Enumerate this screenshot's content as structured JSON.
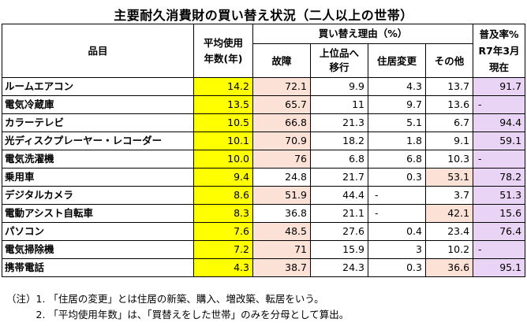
{
  "title": "主要耐久消費財の買い替え状況（二人以上の世帯）",
  "headers": {
    "item": "品目",
    "avg_years_line1": "平均使用",
    "avg_years_line2": "年数(年)",
    "reasons_group": "買い替え理由（%）",
    "reason_failure": "故障",
    "reason_upgrade_line1": "上位品へ",
    "reason_upgrade_line2": "移行",
    "reason_move": "住居変更",
    "reason_other": "その他",
    "spread_line1": "普及率%",
    "spread_line2": "R7年3月",
    "spread_line3": "現在"
  },
  "rows": [
    {
      "name": "ルームエアコン",
      "years": "14.2",
      "failure": "72.1",
      "upgrade": "9.9",
      "move": "4.3",
      "other": "13.7",
      "spread": "91.7"
    },
    {
      "name": "電気冷蔵庫",
      "years": "13.5",
      "failure": "65.7",
      "upgrade": "11",
      "move": "9.7",
      "other": "13.6",
      "spread": "-"
    },
    {
      "name": "カラーテレビ",
      "years": "10.5",
      "failure": "66.8",
      "upgrade": "21.3",
      "move": "5.1",
      "other": "6.7",
      "spread": "94.4"
    },
    {
      "name": "光ディスクプレーヤー・レコーダー",
      "years": "10.1",
      "failure": "70.9",
      "upgrade": "18.2",
      "move": "1.8",
      "other": "9.1",
      "spread": "59.1"
    },
    {
      "name": "電気洗濯機",
      "years": "10.0",
      "failure": "76",
      "upgrade": "6.8",
      "move": "6.8",
      "other": "10.3",
      "spread": "-"
    },
    {
      "name": "乗用車",
      "years": "9.4",
      "failure": "24.8",
      "upgrade": "21.7",
      "move": "0.3",
      "other": "53.1",
      "spread": "78.2"
    },
    {
      "name": "デジタルカメラ",
      "years": "8.6",
      "failure": "51.9",
      "upgrade": "44.4",
      "move": "-",
      "other": "3.7",
      "spread": "51.3"
    },
    {
      "name": "電動アシスト自転車",
      "years": "8.3",
      "failure": "36.8",
      "upgrade": "21.1",
      "move": "-",
      "other": "42.1",
      "spread": "15.6"
    },
    {
      "name": "パソコン",
      "years": "7.6",
      "failure": "48.5",
      "upgrade": "27.6",
      "move": "0.4",
      "other": "23.4",
      "spread": "76.4"
    },
    {
      "name": "電気掃除機",
      "years": "7.2",
      "failure": "71",
      "upgrade": "15.9",
      "move": "3",
      "other": "10.2",
      "spread": "-"
    },
    {
      "name": "携帯電話",
      "years": "4.3",
      "failure": "38.7",
      "upgrade": "24.3",
      "move": "0.3",
      "other": "36.6",
      "spread": "95.1"
    }
  ],
  "notes": [
    "（注）1. 「住居の変更」とは住居の新築、購入、増改築、転居をいう。",
    "　　　2. 「平均使用年数」は、「買替えをした世帯」のみを分母として算出。"
  ],
  "colors": {
    "years_highlight": "#ffff00",
    "reason_highlight": "#fbe1d6",
    "spread_highlight": "#ead4f5"
  }
}
